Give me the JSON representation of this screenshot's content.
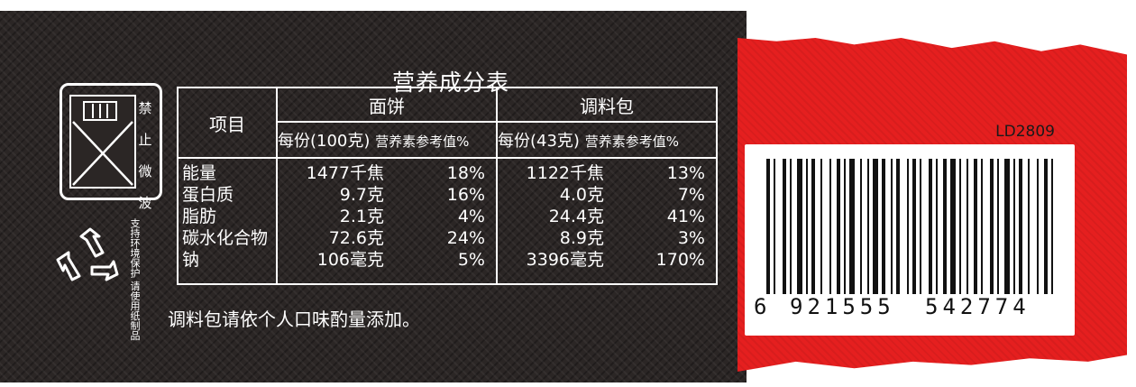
{
  "nutrition": {
    "title": "营养成分表",
    "item_header": "项目",
    "groups": [
      {
        "name": "面饼",
        "col1": "每份(100克)",
        "col2": "营养素参考值%"
      },
      {
        "name": "调料包",
        "col1": "每份(43克)",
        "col2": "营养素参考值%"
      }
    ],
    "items": [
      "能量",
      "蛋白质",
      "脂肪",
      "碳水化合物",
      "钠"
    ],
    "noodle_values": [
      {
        "amount": "1477千焦",
        "nrv": "18%"
      },
      {
        "amount": "9.7克",
        "nrv": "16%"
      },
      {
        "amount": "2.1克",
        "nrv": "4%"
      },
      {
        "amount": "72.6克",
        "nrv": "24%"
      },
      {
        "amount": "106毫克",
        "nrv": "5%"
      }
    ],
    "seasoning_values": [
      {
        "amount": "1122千焦",
        "nrv": "13%"
      },
      {
        "amount": "4.0克",
        "nrv": "7%"
      },
      {
        "amount": "24.4克",
        "nrv": "41%"
      },
      {
        "amount": "8.9克",
        "nrv": "3%"
      },
      {
        "amount": "3396毫克",
        "nrv": "170%"
      }
    ],
    "note": "调料包请依个人口味酌量添加。"
  },
  "microwave_icon": {
    "label": "禁止微波"
  },
  "recycle": {
    "text": "支持环境保护 请使用纸制品"
  },
  "barcode": {
    "code_id": "LD2809",
    "first": "6",
    "left": "921555",
    "right": "542774"
  },
  "colors": {
    "dark": "#2b2625",
    "red": "#e51f1f",
    "text": "#ffffff"
  }
}
